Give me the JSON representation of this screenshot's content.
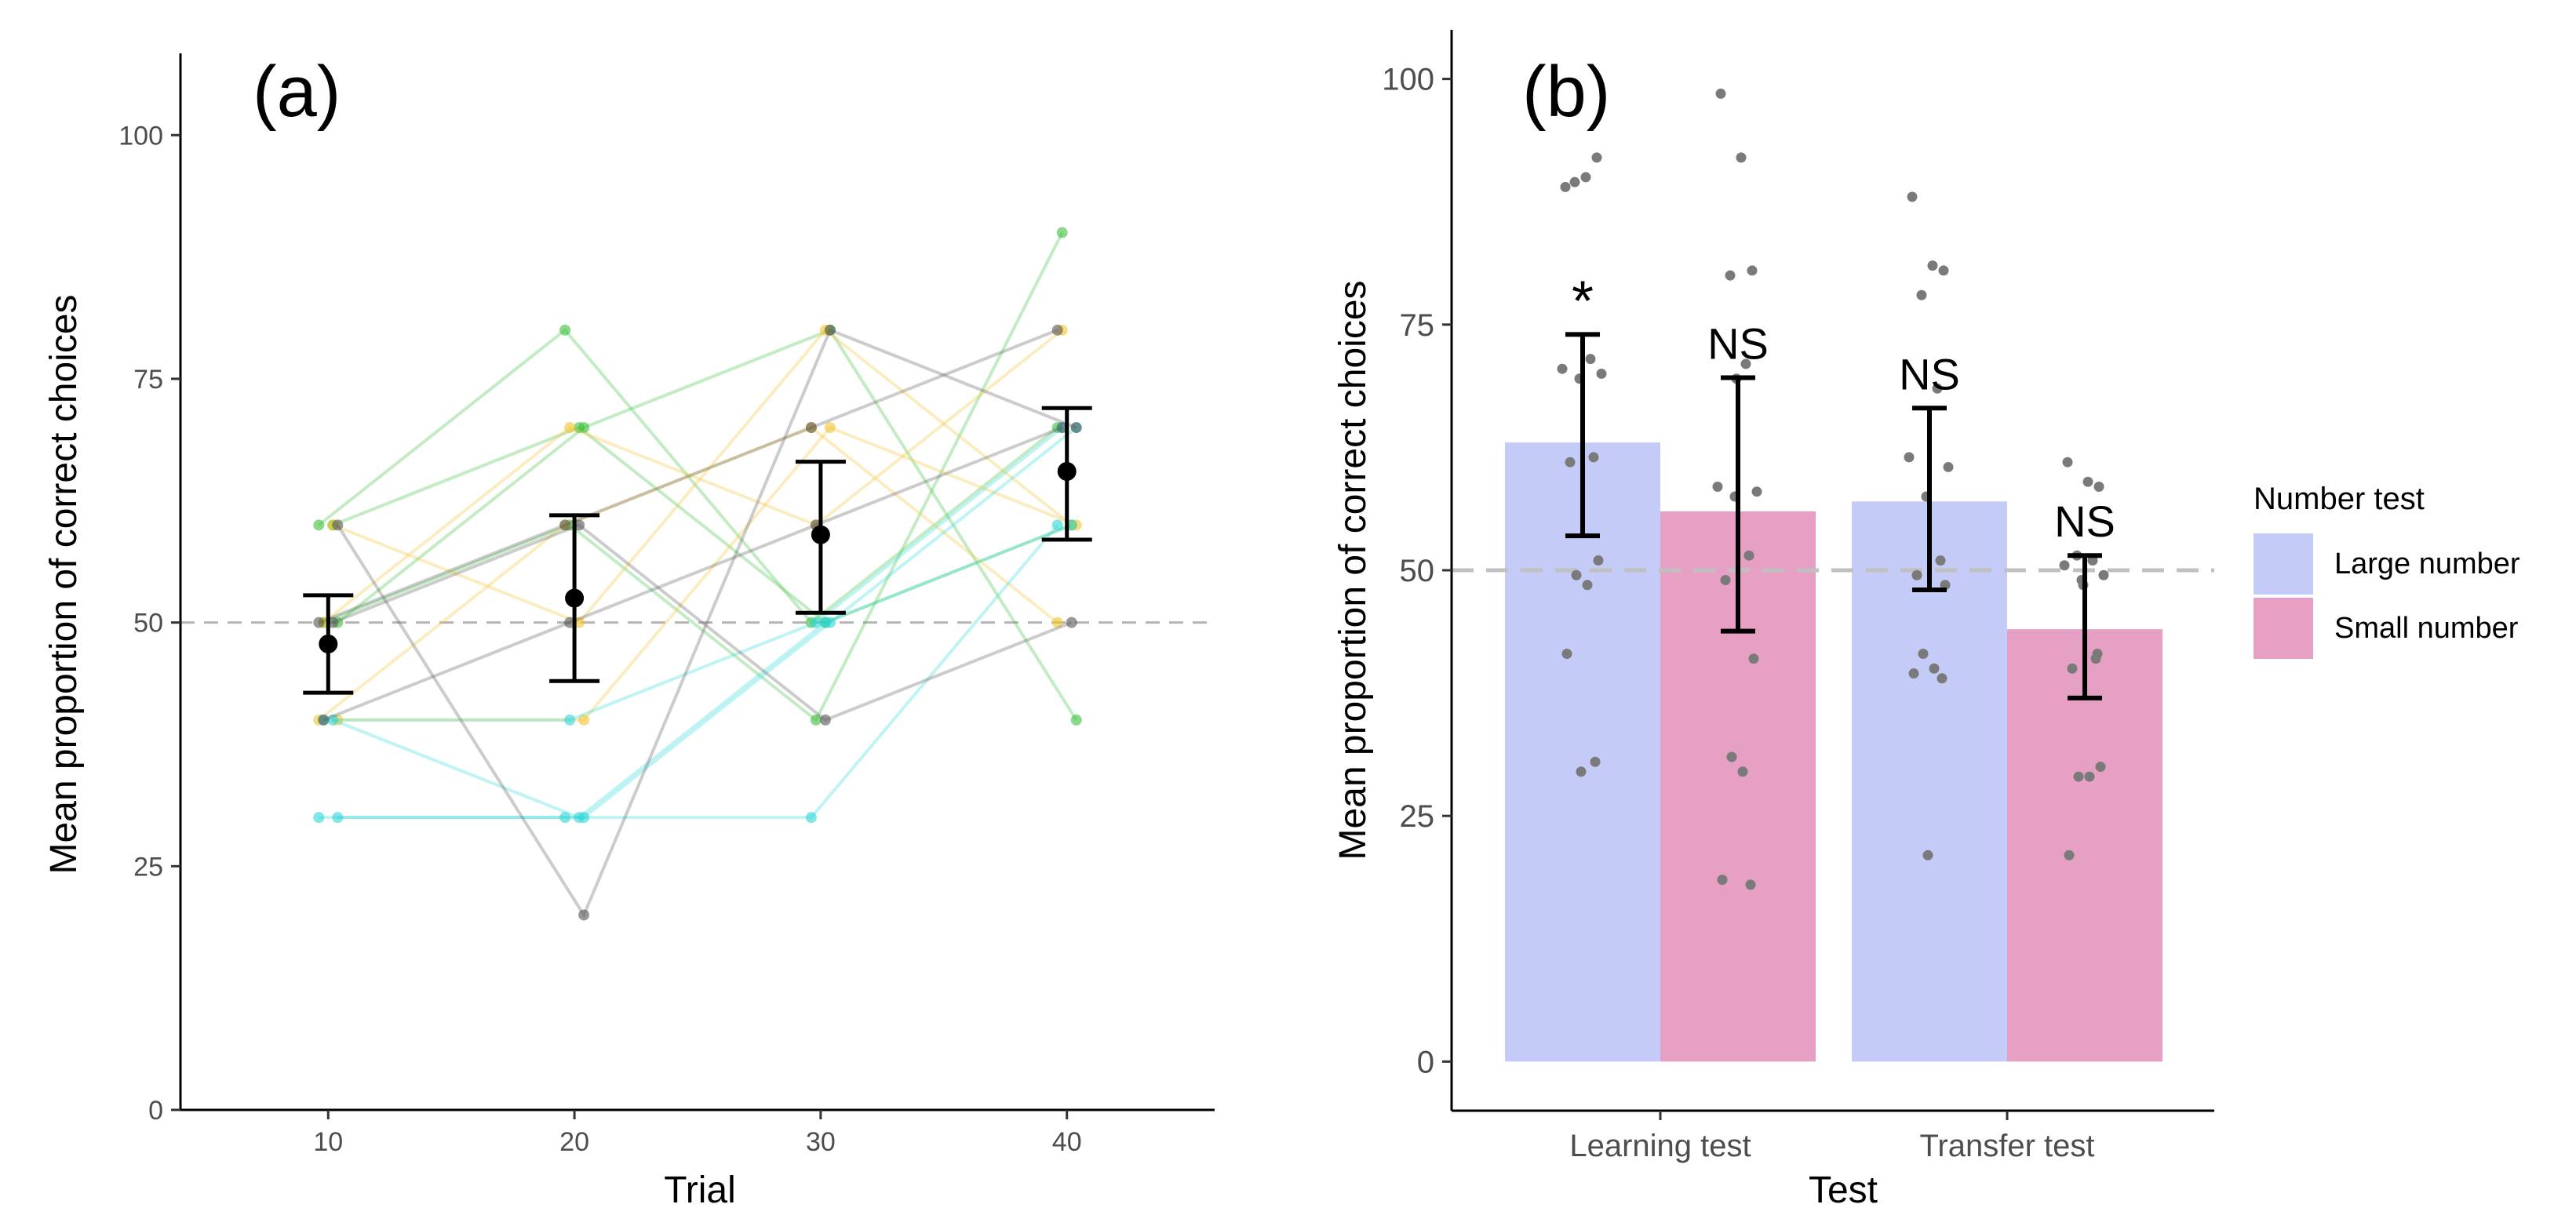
{
  "chart_data": [
    {
      "type": "line",
      "panel_label": "(a)",
      "xlabel": "Trial",
      "ylabel": "Mean proportion of correct choices",
      "xlim": [
        4,
        46
      ],
      "ylim": [
        0,
        110
      ],
      "x_ticks": [
        "10",
        "20",
        "30",
        "40"
      ],
      "y_ticks": [
        "0",
        "25",
        "50",
        "75",
        "100"
      ],
      "reference_line": 50,
      "legend": "none",
      "grid": false,
      "x": [
        10,
        20,
        30,
        40
      ],
      "individual_series": [
        {
          "color": "#3bbf3b",
          "values": [
            60,
            80,
            50,
            70
          ]
        },
        {
          "color": "#3bbf3b",
          "values": [
            50,
            70,
            80,
            40
          ]
        },
        {
          "color": "#3bbf3b",
          "values": [
            50,
            60,
            40,
            90
          ]
        },
        {
          "color": "#3bbf3b",
          "values": [
            60,
            70,
            50,
            60
          ]
        },
        {
          "color": "#f2c531",
          "values": [
            40,
            60,
            70,
            50
          ]
        },
        {
          "color": "#f2c531",
          "values": [
            40,
            40,
            70,
            60
          ]
        },
        {
          "color": "#f2c531",
          "values": [
            50,
            70,
            60,
            80
          ]
        },
        {
          "color": "#f2c531",
          "values": [
            60,
            50,
            80,
            60
          ]
        },
        {
          "color": "#2fd6d6",
          "values": [
            30,
            30,
            30,
            60
          ]
        },
        {
          "color": "#2fd6d6",
          "values": [
            30,
            30,
            50,
            70
          ]
        },
        {
          "color": "#2fd6d6",
          "values": [
            40,
            40,
            50,
            70
          ]
        },
        {
          "color": "#2fd6d6",
          "values": [
            40,
            30,
            50,
            60
          ]
        },
        {
          "color": "#555555",
          "values": [
            50,
            60,
            70,
            80
          ]
        },
        {
          "color": "#555555",
          "values": [
            60,
            20,
            80,
            70
          ]
        },
        {
          "color": "#555555",
          "values": [
            40,
            50,
            60,
            70
          ]
        },
        {
          "color": "#555555",
          "values": [
            50,
            60,
            40,
            50
          ]
        }
      ],
      "mean_series": {
        "color": "#000000",
        "values": [
          47.8,
          52.5,
          59.0,
          65.5
        ],
        "error_low": [
          42.8,
          44.0,
          51.0,
          58.5
        ],
        "error_high": [
          52.8,
          61.0,
          66.5,
          72.0
        ]
      }
    },
    {
      "type": "bar",
      "panel_label": "(b)",
      "xlabel": "Test",
      "ylabel": "Mean proportion of correct choices",
      "ylim": [
        -5,
        105
      ],
      "y_ticks": [
        "0",
        "25",
        "50",
        "75",
        "100"
      ],
      "categories": [
        "Learning test",
        "Transfer test"
      ],
      "reference_line": 50,
      "grid": false,
      "legend_title": "Number test",
      "legend_position": "right",
      "series": [
        {
          "name": "Large number",
          "color": "#c5cbf7",
          "values": [
            63,
            57
          ],
          "error_low": [
            53.5,
            48
          ],
          "error_high": [
            74,
            66.5
          ],
          "annotations": [
            "*",
            "NS"
          ],
          "points": [
            [
              89,
              90,
              92,
              89.5,
              71.5,
              70.5,
              70,
              69.5,
              61.5,
              61,
              51,
              49.5,
              48.5,
              41.5,
              30.5,
              29.5
            ],
            [
              88,
              81,
              80.5,
              78,
              68.5,
              61.5,
              60.5,
              57.5,
              51,
              49.5,
              48.5,
              41.5,
              40,
              39.5,
              39,
              21
            ]
          ]
        },
        {
          "name": "Small number",
          "color": "#e5a0c3",
          "values": [
            56,
            44
          ],
          "error_low": [
            43.8,
            37
          ],
          "error_high": [
            69.6,
            51.5
          ],
          "annotations": [
            "NS",
            "NS"
          ],
          "points": [
            [
              98.5,
              92,
              80.5,
              80,
              71,
              58.5,
              58,
              57.5,
              51.5,
              49,
              41,
              31,
              29.5,
              18.5,
              18,
              69.5
            ],
            [
              61,
              59,
              58.5,
              51.5,
              51,
              50.5,
              49.5,
              49,
              41,
              40,
              30,
              29,
              29,
              21,
              41.5,
              48.5
            ]
          ]
        }
      ]
    }
  ]
}
